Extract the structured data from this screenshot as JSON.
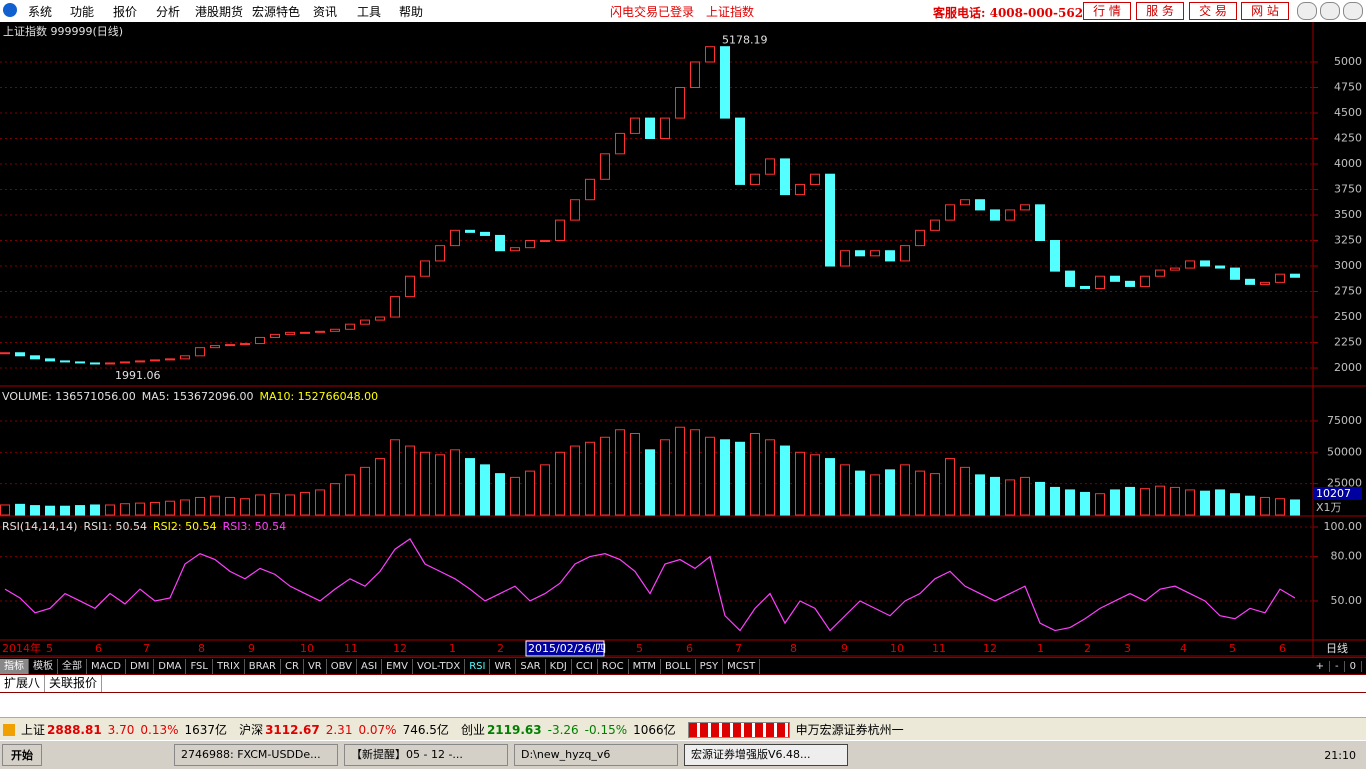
{
  "menu": {
    "items": [
      "系统",
      "功能",
      "报价",
      "分析",
      "港股期货",
      "宏源特色",
      "资讯",
      "工具",
      "帮助"
    ],
    "status": [
      "闪电交易已登录",
      "上证指数"
    ],
    "hotline": "客服电话: 4008-000-562",
    "buttons": [
      "行 情",
      "服 务",
      "交 易",
      "网 站"
    ]
  },
  "chart_data": [
    {
      "type": "candlestick",
      "title": "上证指数 999999(日线)",
      "annotations": [
        "5178.19",
        "1991.06"
      ],
      "up_color": "#ff3232",
      "down_color": "#54ffff",
      "values": [
        2150,
        2120,
        2090,
        2070,
        2060,
        2050,
        2040,
        2050,
        2060,
        2070,
        2080,
        2090,
        2120,
        2200,
        2220,
        2230,
        2240,
        2300,
        2330,
        2350,
        2350,
        2360,
        2380,
        2430,
        2470,
        2500,
        2700,
        2900,
        3050,
        3200,
        3350,
        3330,
        3300,
        3150,
        3180,
        3250,
        3250,
        3450,
        3650,
        3850,
        4100,
        4300,
        4450,
        4250,
        4450,
        4750,
        5000,
        5150,
        4450,
        3800,
        3900,
        4050,
        3700,
        3800,
        3900,
        3000,
        3150,
        3100,
        3150,
        3050,
        3200,
        3350,
        3450,
        3600,
        3650,
        3550,
        3450,
        3550,
        3600,
        3250,
        2950,
        2800,
        2780,
        2900,
        2850,
        2800,
        2900,
        2960,
        2980,
        3050,
        3000,
        2980,
        2870,
        2820,
        2840,
        2920,
        2890
      ],
      "ylim": [
        1824,
        5392
      ],
      "yticks": [
        2000,
        2250,
        2500,
        2750,
        3000,
        3250,
        3500,
        3750,
        4000,
        4250,
        4500,
        4750,
        5000
      ],
      "grid": true
    },
    {
      "type": "bar",
      "legend": [
        "VOLUME: 136571056.00",
        "MA5: 153672096.00",
        "MA10: 152766048.00"
      ],
      "legend_colors": [
        "#e0e0e0",
        "#e0e0e0",
        "#ffff00"
      ],
      "current_label": "10207",
      "unit_label": "X1万",
      "values": [
        8000,
        8500,
        7500,
        7000,
        7000,
        7500,
        8000,
        8000,
        9000,
        9500,
        10000,
        11000,
        12000,
        14000,
        15000,
        14000,
        13000,
        16000,
        17000,
        16000,
        18000,
        20000,
        25000,
        32000,
        38000,
        45000,
        60000,
        55000,
        50000,
        48000,
        52000,
        45000,
        40000,
        33000,
        30000,
        35000,
        40000,
        50000,
        55000,
        58000,
        62000,
        68000,
        65000,
        52000,
        60000,
        70000,
        68000,
        62000,
        60000,
        58000,
        65000,
        60000,
        55000,
        50000,
        48000,
        45000,
        40000,
        35000,
        32000,
        36000,
        40000,
        35000,
        33000,
        45000,
        38000,
        32000,
        30000,
        28000,
        30000,
        26000,
        22000,
        20000,
        18000,
        17000,
        20000,
        22000,
        21000,
        23000,
        22000,
        20000,
        19000,
        20000,
        17000,
        15000,
        14000,
        13000,
        12000
      ],
      "ylim": [
        0,
        101300
      ],
      "yticks": [
        25000,
        50000,
        75000
      ],
      "grid": true
    },
    {
      "type": "line",
      "legend": [
        "RSI(14,14,14)",
        "RSI1: 50.54",
        "RSI2: 50.54",
        "RSI3: 50.54"
      ],
      "legend_colors": [
        "#e0e0e0",
        "#e0e0e0",
        "#ffff00",
        "#ff40ff"
      ],
      "color": "#ff40ff",
      "values": [
        58,
        52,
        42,
        45,
        55,
        50,
        45,
        55,
        48,
        58,
        50,
        52,
        75,
        82,
        78,
        70,
        65,
        72,
        68,
        60,
        55,
        50,
        58,
        65,
        60,
        70,
        85,
        92,
        75,
        70,
        65,
        58,
        50,
        55,
        60,
        50,
        55,
        62,
        75,
        80,
        82,
        78,
        70,
        55,
        75,
        78,
        72,
        80,
        40,
        30,
        45,
        55,
        35,
        50,
        45,
        30,
        40,
        50,
        45,
        40,
        50,
        55,
        65,
        70,
        60,
        55,
        50,
        55,
        60,
        35,
        30,
        32,
        38,
        45,
        50,
        55,
        50,
        58,
        60,
        55,
        50,
        40,
        38,
        45,
        42,
        58,
        52
      ],
      "ylim": [
        23.6,
        106.1
      ],
      "yticks": [
        {
          "value": 100,
          "label": "100.00"
        },
        {
          "value": 80,
          "label": "80.00"
        },
        {
          "value": 50,
          "label": "50.00"
        }
      ],
      "grid": true
    }
  ],
  "date_axis": {
    "labels": [
      "2014年",
      "5",
      "6",
      "7",
      "8",
      "9",
      "10",
      "11",
      "12",
      "1",
      "2",
      "5",
      "6",
      "7",
      "8",
      "9",
      "10",
      "11",
      "12",
      "1",
      "2",
      "3",
      "4",
      "5",
      "6"
    ],
    "cursor_label": "2015/02/26/四",
    "period": "日线"
  },
  "tabs": [
    "指标",
    "模板",
    "全部",
    "MACD",
    "DMI",
    "DMA",
    "FSL",
    "TRIX",
    "BRAR",
    "CR",
    "VR",
    "OBV",
    "ASI",
    "EMV",
    "VOL-TDX",
    "RSI",
    "WR",
    "SAR",
    "KDJ",
    "CCI",
    "ROC",
    "MTM",
    "BOLL",
    "PSY",
    "MCST"
  ],
  "tab_controls": [
    "+",
    "-",
    "0"
  ],
  "sub_tabs": [
    "扩展八",
    "关联报价"
  ],
  "status_bar": {
    "markets": [
      [
        "上证",
        "2888.81",
        "3.70",
        "0.13%",
        "1637亿"
      ],
      [
        "沪深",
        "3112.67",
        "2.31",
        "0.07%",
        "746.5亿"
      ],
      [
        "创业",
        "2119.63",
        "-3.26",
        "-0.15%",
        "1066亿"
      ]
    ],
    "broker": "申万宏源证券杭州一"
  },
  "taskbar": {
    "start": "开始",
    "tasks": [
      "2746988: FXCM-USDDe...",
      "【新提醒】05 - 12 -...",
      "D:\\new_hyzq_v6",
      "宏源证券增强版V6.48..."
    ],
    "clock": "21:10"
  }
}
